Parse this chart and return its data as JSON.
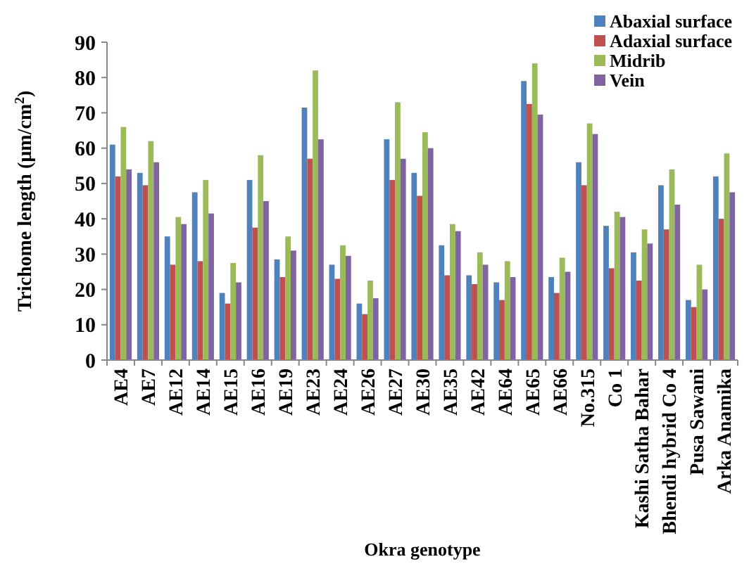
{
  "chart_data": {
    "type": "bar",
    "xlabel": "Okra genotype",
    "ylabel": "Trichome length (µm/cm$^{2}$)",
    "categories": [
      "AE4",
      "AE7",
      "AE12",
      "AE14",
      "AE15",
      "AE16",
      "AE19",
      "AE23",
      "AE24",
      "AE26",
      "AE27",
      "AE30",
      "AE35",
      "AE42",
      "AE64",
      "AE65",
      "AE66",
      "No.315",
      "Co 1",
      "Kashi Satha Bahar",
      "Bhendi hybrid Co 4",
      "Pusa Sawani",
      "Arka Anamika"
    ],
    "series": [
      {
        "name": "Abaxial surface",
        "color": "#4f81bd",
        "values": [
          61,
          53,
          35,
          47.5,
          19,
          51,
          28.5,
          71.5,
          27,
          16,
          62.5,
          53,
          32.5,
          24,
          22,
          79,
          23.5,
          56,
          38,
          30.5,
          49.5,
          17,
          52
        ]
      },
      {
        "name": "Adaxial surface",
        "color": "#c0504d",
        "values": [
          52,
          49.5,
          27,
          28,
          16,
          37.5,
          23.5,
          57,
          23,
          13,
          51,
          46.5,
          24,
          21.5,
          17,
          72.5,
          19,
          49.5,
          26,
          22.5,
          37,
          15,
          40
        ]
      },
      {
        "name": "Midrib",
        "color": "#9bbb59",
        "values": [
          66,
          62,
          40.5,
          51,
          27.5,
          58,
          35,
          82,
          32.5,
          22.5,
          73,
          64.5,
          38.5,
          30.5,
          28,
          84,
          29,
          67,
          42,
          37,
          54,
          27,
          58.5
        ]
      },
      {
        "name": "Vein",
        "color": "#8064a2",
        "values": [
          54,
          56,
          38.5,
          41.5,
          22,
          45,
          31,
          62.5,
          29.5,
          17.5,
          57,
          60,
          36.5,
          27,
          23.5,
          69.5,
          25,
          64,
          40.5,
          33,
          44,
          20,
          47.5
        ]
      }
    ],
    "ylim": [
      0,
      90
    ],
    "yticks": [
      0,
      10,
      20,
      30,
      40,
      50,
      60,
      70,
      80,
      90
    ],
    "grid": false,
    "legend": "top right"
  }
}
